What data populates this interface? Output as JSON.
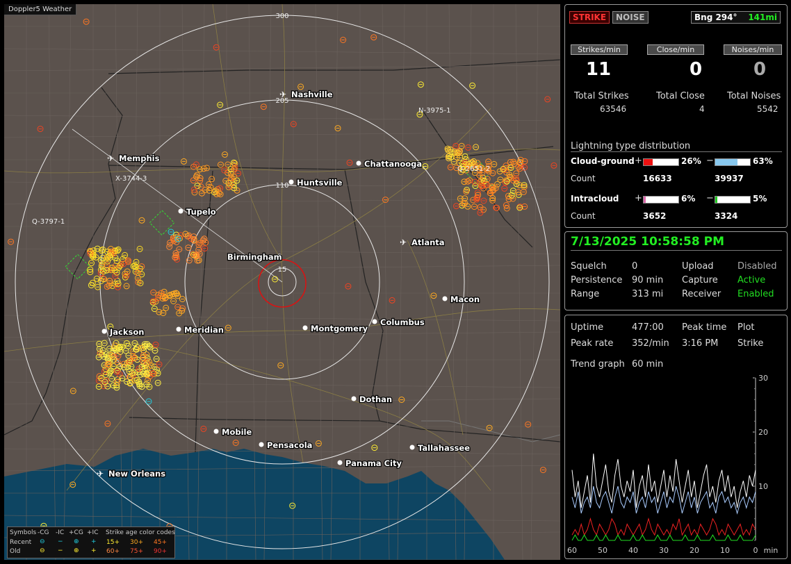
{
  "app_title": "Doppler5 Weather",
  "map": {
    "range_labels": [
      "300",
      "205",
      "110",
      "15"
    ],
    "cities": [
      {
        "name": "Nashville",
        "type": "airport"
      },
      {
        "name": "Memphis",
        "type": "airport"
      },
      {
        "name": "Chattanooga",
        "type": "city"
      },
      {
        "name": "Huntsville",
        "type": "city"
      },
      {
        "name": "Tupelo",
        "type": "city"
      },
      {
        "name": "Birmingham",
        "type": "city"
      },
      {
        "name": "Atlanta",
        "type": "airport"
      },
      {
        "name": "Macon",
        "type": "city"
      },
      {
        "name": "Jackson",
        "type": "city"
      },
      {
        "name": "Meridian",
        "type": "city"
      },
      {
        "name": "Montgomery",
        "type": "city"
      },
      {
        "name": "Columbus",
        "type": "city"
      },
      {
        "name": "Dothan",
        "type": "city"
      },
      {
        "name": "Mobile",
        "type": "city"
      },
      {
        "name": "Pensacola",
        "type": "city"
      },
      {
        "name": "Tallahassee",
        "type": "city"
      },
      {
        "name": "Panama City",
        "type": "city"
      },
      {
        "name": "New Orleans",
        "type": "airport"
      }
    ],
    "storm_ids": [
      "N-3975-1",
      "X-3744-3",
      "Q-3797-1",
      "Q-2651-2"
    ]
  },
  "legend": {
    "symbols_label": "Symbols",
    "cols": [
      "-CG",
      "-IC",
      "+CG",
      "+IC"
    ],
    "recent": "Recent",
    "old": "Old",
    "age_label": "Strike age color codes",
    "recent_ages": [
      "15+",
      "30+",
      "45+"
    ],
    "old_ages": [
      "60+",
      "75+",
      "90+"
    ]
  },
  "status": {
    "strike_btn": "STRIKE",
    "noise_btn": "NOISE",
    "bearing": "Bng 294°",
    "distance": "141mi",
    "strikes_min_label": "Strikes/min",
    "close_min_label": "Close/min",
    "noises_min_label": "Noises/min",
    "strikes_min": "11",
    "close_min": "0",
    "noises_min": "0",
    "total_strikes_label": "Total Strikes",
    "total_close_label": "Total Close",
    "total_noises_label": "Total Noises",
    "total_strikes": "63546",
    "total_close": "4",
    "total_noises": "5542",
    "dist_title": "Lightning type distribution",
    "cg_label": "Cloud-ground",
    "ic_label": "Intracloud",
    "count_label": "Count",
    "plus": "+",
    "minus": "−",
    "cg_pos_pct": "26%",
    "cg_neg_pct": "63%",
    "ic_pos_pct": "6%",
    "ic_neg_pct": "5%",
    "cg_pos_count": "16633",
    "cg_neg_count": "39937",
    "ic_pos_count": "3652",
    "ic_neg_count": "3324",
    "cg_pos_frac": 0.26,
    "cg_neg_frac": 0.63,
    "ic_pos_frac": 0.06,
    "ic_neg_frac": 0.05
  },
  "settings": {
    "datetime": "7/13/2025 10:58:58 PM",
    "squelch_label": "Squelch",
    "squelch": "0",
    "persistence_label": "Persistence",
    "persistence": "90 min",
    "range_label": "Range",
    "range": "313 mi",
    "upload_label": "Upload",
    "upload": "Disabled",
    "capture_label": "Capture",
    "capture": "Active",
    "receiver_label": "Receiver",
    "receiver": "Enabled"
  },
  "stats": {
    "uptime_label": "Uptime",
    "uptime": "477:00",
    "peak_time_label": "Peak time",
    "peak_time": "3:16 PM",
    "plot_label": "Plot",
    "plot": "Strike",
    "peak_rate_label": "Peak rate",
    "peak_rate": "352/min",
    "trend_label": "Trend graph",
    "trend": "60 min"
  },
  "chart_data": {
    "type": "line",
    "x_ticks": [
      "60",
      "50",
      "40",
      "30",
      "20",
      "10",
      "0"
    ],
    "x_unit": "min",
    "y_ticks": [
      "30",
      "20",
      "10"
    ],
    "ylim": [
      0,
      30
    ],
    "xlim": [
      60,
      0
    ],
    "series": [
      {
        "color": "#ffffff",
        "values": [
          13,
          8,
          11,
          6,
          9,
          12,
          7,
          16,
          10,
          8,
          11,
          14,
          9,
          7,
          12,
          15,
          10,
          8,
          11,
          9,
          13,
          6,
          10,
          12,
          8,
          14,
          9,
          11,
          7,
          10,
          13,
          8,
          12,
          9,
          15,
          11,
          7,
          10,
          13,
          8,
          11,
          6,
          9,
          12,
          14,
          8,
          10,
          7,
          11,
          13,
          9,
          12,
          8,
          10,
          6,
          9,
          11,
          8,
          12,
          10,
          13
        ]
      },
      {
        "color": "#aaccff",
        "values": [
          8,
          6,
          9,
          5,
          7,
          8,
          6,
          10,
          7,
          6,
          8,
          9,
          7,
          5,
          8,
          10,
          7,
          6,
          8,
          7,
          9,
          5,
          7,
          8,
          6,
          9,
          7,
          8,
          5,
          7,
          9,
          6,
          8,
          7,
          10,
          8,
          5,
          7,
          9,
          6,
          8,
          5,
          7,
          8,
          9,
          6,
          7,
          5,
          8,
          9,
          7,
          8,
          6,
          7,
          5,
          7,
          8,
          6,
          8,
          7,
          9
        ]
      },
      {
        "color": "#ee2222",
        "values": [
          1,
          2,
          1,
          3,
          1,
          2,
          4,
          2,
          1,
          3,
          2,
          1,
          2,
          4,
          3,
          1,
          2,
          1,
          3,
          2,
          1,
          2,
          3,
          1,
          2,
          4,
          2,
          1,
          3,
          2,
          1,
          2,
          1,
          3,
          2,
          4,
          1,
          2,
          3,
          1,
          2,
          1,
          3,
          2,
          1,
          2,
          4,
          3,
          1,
          2,
          1,
          3,
          2,
          1,
          2,
          3,
          1,
          2,
          1,
          3,
          2
        ]
      },
      {
        "color": "#22dd22",
        "values": [
          0,
          1,
          0,
          0,
          1,
          0,
          0,
          0,
          1,
          0,
          0,
          1,
          0,
          0,
          0,
          1,
          0,
          0,
          0,
          0,
          1,
          0,
          0,
          1,
          0,
          0,
          0,
          0,
          1,
          0,
          0,
          0,
          1,
          0,
          0,
          0,
          0,
          1,
          0,
          0,
          0,
          1,
          0,
          0,
          0,
          0,
          1,
          0,
          0,
          0,
          0,
          1,
          0,
          0,
          0,
          1,
          0,
          0,
          0,
          0,
          1
        ]
      }
    ]
  }
}
